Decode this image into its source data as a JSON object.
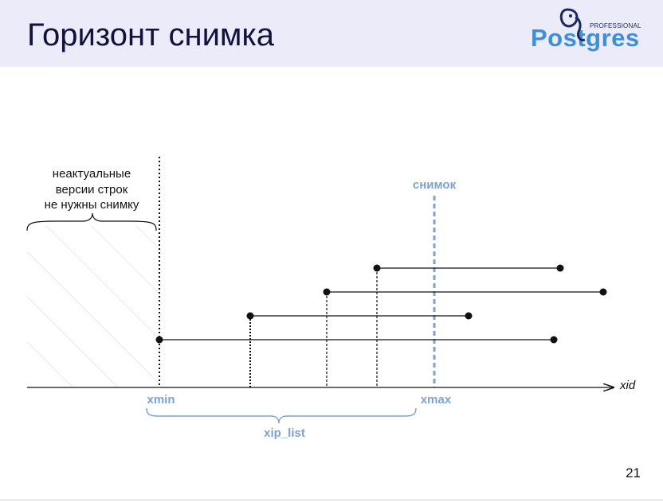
{
  "header": {
    "title": "Горизонт снимка",
    "logo": {
      "top": "PROFESSIONAL",
      "word": "Postgres"
    }
  },
  "diagram": {
    "note_lines": [
      "неактуальные",
      "версии строк",
      "не нужны снимку"
    ],
    "snapshot_label": "снимок",
    "axis_label": "xid",
    "xmin_label": "xmin",
    "xmax_label": "xmax",
    "xip_label": "xip_list"
  },
  "colors": {
    "accent": "#7da2cf",
    "header_bg": "#ebebf9",
    "title": "#12123a"
  },
  "footer": {
    "page": "21"
  }
}
